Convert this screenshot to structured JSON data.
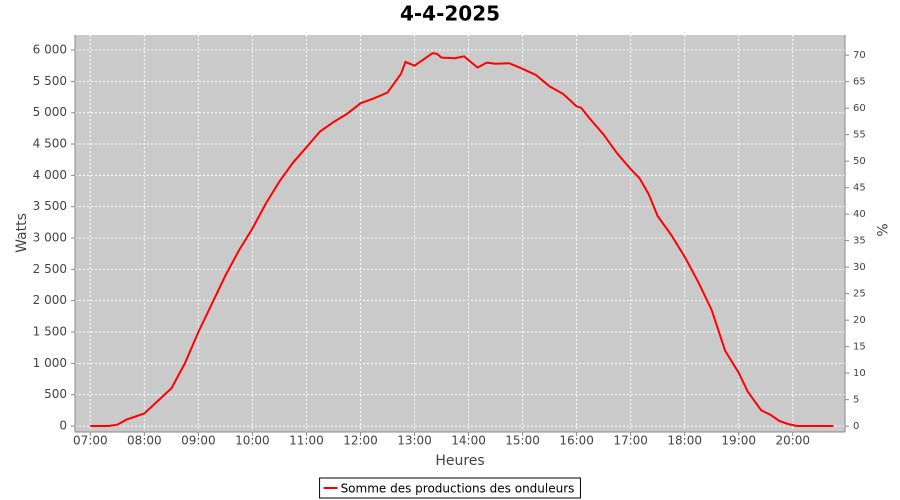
{
  "chart_data": {
    "type": "line",
    "title": "4-4-2025",
    "xlabel": "Heures",
    "ylabel": "Watts",
    "y2label": "%",
    "x": [
      "07:00",
      "07:20",
      "07:30",
      "07:40",
      "08:00",
      "08:15",
      "08:30",
      "08:45",
      "09:00",
      "09:15",
      "09:30",
      "09:45",
      "10:00",
      "10:15",
      "10:30",
      "10:45",
      "11:00",
      "11:15",
      "11:30",
      "11:45",
      "12:00",
      "12:15",
      "12:30",
      "12:45",
      "12:50",
      "12:55",
      "13:00",
      "13:10",
      "13:20",
      "13:25",
      "13:30",
      "13:45",
      "13:55",
      "14:00",
      "14:10",
      "14:20",
      "14:30",
      "14:45",
      "15:00",
      "15:15",
      "15:30",
      "15:45",
      "16:00",
      "16:05",
      "16:15",
      "16:30",
      "16:45",
      "17:00",
      "17:10",
      "17:20",
      "17:30",
      "17:45",
      "18:00",
      "18:15",
      "18:30",
      "18:45",
      "19:00",
      "19:10",
      "19:15",
      "19:25",
      "19:35",
      "19:45",
      "19:55",
      "20:05",
      "20:45"
    ],
    "series": [
      {
        "name": "Somme des productions des onduleurs",
        "color": "#ff0000",
        "values": [
          0,
          0,
          20,
          100,
          200,
          400,
          600,
          1000,
          1500,
          1950,
          2400,
          2800,
          3150,
          3550,
          3900,
          4200,
          4450,
          4700,
          4850,
          4980,
          5150,
          5230,
          5320,
          5620,
          5810,
          5780,
          5750,
          5850,
          5950,
          5940,
          5880,
          5870,
          5900,
          5840,
          5720,
          5800,
          5780,
          5790,
          5700,
          5600,
          5420,
          5300,
          5100,
          5080,
          4900,
          4650,
          4350,
          4100,
          3950,
          3700,
          3350,
          3050,
          2700,
          2300,
          1850,
          1200,
          850,
          550,
          450,
          250,
          180,
          80,
          30,
          0,
          0
        ]
      }
    ],
    "xlim": [
      "06:43",
      "20:58"
    ],
    "xticks": [
      "07:00",
      "08:00",
      "09:00",
      "10:00",
      "11:00",
      "12:00",
      "13:00",
      "14:00",
      "15:00",
      "16:00",
      "17:00",
      "18:00",
      "19:00",
      "20:00"
    ],
    "ylim": [
      -96,
      6240
    ],
    "yticks": [
      0,
      500,
      {
        "value": 1000,
        "label": "1 000"
      },
      {
        "value": 1500,
        "label": "1 500"
      },
      {
        "value": 2000,
        "label": "2 000"
      },
      {
        "value": 2500,
        "label": "2 500"
      },
      {
        "value": 3000,
        "label": "3 000"
      },
      {
        "value": 3500,
        "label": "3 500"
      },
      {
        "value": 4000,
        "label": "4 000"
      },
      {
        "value": 4500,
        "label": "4 500"
      },
      {
        "value": 5000,
        "label": "5 000"
      },
      {
        "value": 5500,
        "label": "5 500"
      },
      {
        "value": 6000,
        "label": "6 000"
      }
    ],
    "y2lim": [
      -1.1,
      73.8
    ],
    "y2ticks": [
      0,
      5,
      10,
      15,
      20,
      25,
      30,
      35,
      40,
      45,
      50,
      55,
      60,
      65,
      70
    ],
    "grid": true,
    "legend": "bottom"
  }
}
